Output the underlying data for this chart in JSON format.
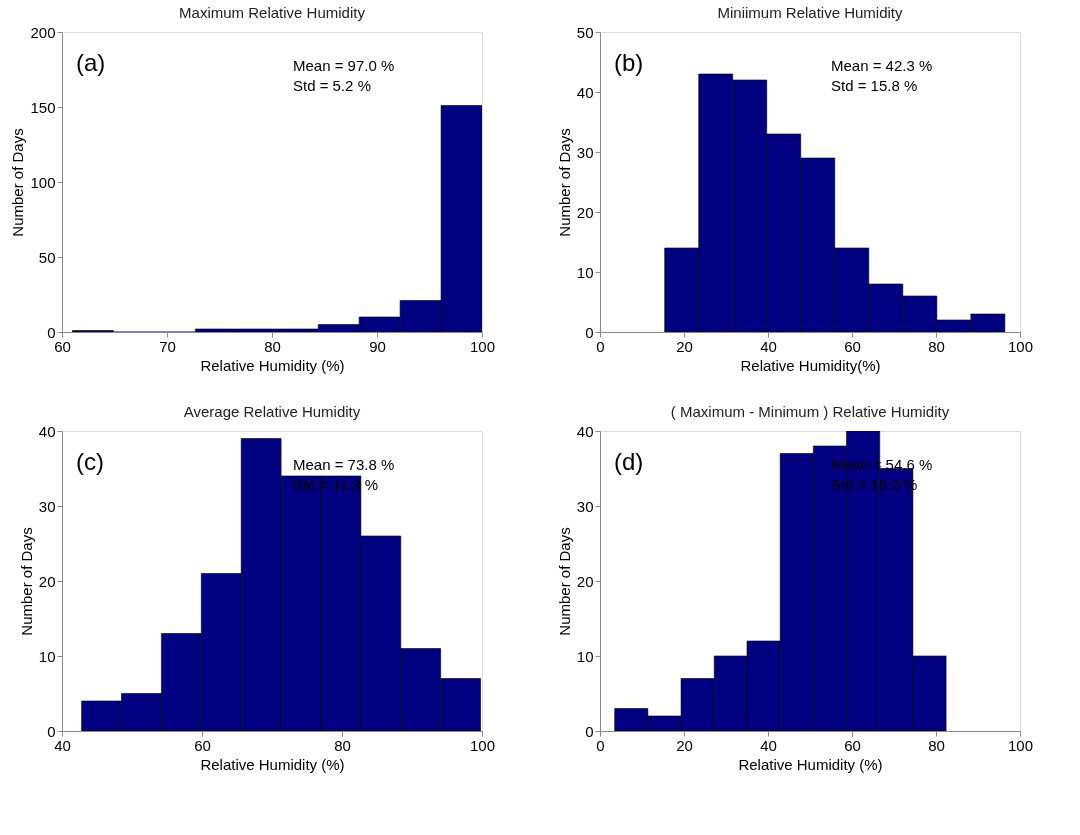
{
  "chart_data": [
    {
      "type": "histogram",
      "title": "Maximum Relative Humidity",
      "xlabel": "Relative Humidity (%)",
      "ylabel": "Number of Days",
      "color": "#000080",
      "bins": [
        61.0,
        64.9,
        68.8,
        72.7,
        76.6,
        80.5,
        84.4,
        88.3,
        92.2,
        96.1,
        100.0
      ],
      "values": [
        1,
        0,
        0,
        2,
        2,
        2,
        5,
        10,
        21,
        151
      ],
      "xlim": [
        60,
        100
      ],
      "xticks": [
        60,
        70,
        80,
        90,
        100
      ],
      "ylim": [
        0,
        200
      ],
      "yticks": [
        0,
        50,
        100,
        150,
        200
      ],
      "grid": false,
      "annotations": [
        "(a)",
        "Mean = 97.0 %",
        "Std    = 5.2 %"
      ]
    },
    {
      "type": "histogram",
      "title": "Miniimum Relative Humidity",
      "xlabel": "Relative Humidity(%)",
      "ylabel": "Number of Days",
      "color": "#000080",
      "bins": [
        15.4,
        23.5,
        31.6,
        39.7,
        47.8,
        55.9,
        64.0,
        72.1,
        80.2,
        88.3,
        96.4
      ],
      "values": [
        14,
        43,
        42,
        33,
        29,
        14,
        8,
        6,
        2,
        3
      ],
      "xlim": [
        0,
        100
      ],
      "xticks": [
        0,
        20,
        40,
        60,
        80,
        100
      ],
      "ylim": [
        0,
        50
      ],
      "yticks": [
        0,
        10,
        20,
        30,
        40,
        50
      ],
      "grid": false,
      "annotations": [
        "(b)",
        "Mean = 42.3 %",
        "Std    = 15.8 %"
      ]
    },
    {
      "type": "histogram",
      "title": "Average Relative Humidity",
      "xlabel": "Relative Humidity (%)",
      "ylabel": "Number of Days",
      "color": "#000080",
      "bins": [
        42.8,
        48.5,
        54.2,
        59.9,
        65.6,
        71.3,
        77.0,
        82.7,
        88.4,
        94.1,
        99.8
      ],
      "values": [
        4,
        5,
        13,
        21,
        39,
        34,
        34,
        26,
        11,
        7
      ],
      "xlim": [
        40,
        100
      ],
      "xticks": [
        40,
        60,
        80,
        100
      ],
      "ylim": [
        0,
        40
      ],
      "yticks": [
        0,
        10,
        20,
        30,
        40
      ],
      "grid": false,
      "annotations": [
        "(c)",
        "Mean = 73.8 %",
        "Std    = 11.3 %"
      ]
    },
    {
      "type": "histogram",
      "title": "( Maximum - Minimum ) Relative Humidity",
      "xlabel": "Relative Humidity (%)",
      "ylabel": "Number of Days",
      "color": "#000080",
      "bins": [
        3.5,
        11.4,
        19.3,
        27.2,
        35.0,
        42.9,
        50.8,
        58.7,
        66.6,
        74.5,
        82.4
      ],
      "values": [
        3,
        2,
        7,
        10,
        12,
        37,
        38,
        40,
        35,
        10
      ],
      "xlim": [
        0,
        100
      ],
      "xticks": [
        0,
        20,
        40,
        60,
        80,
        100
      ],
      "ylim": [
        0,
        40
      ],
      "yticks": [
        0,
        10,
        20,
        30,
        40
      ],
      "grid": false,
      "annotations": [
        "(d)",
        "Mean = 54.6 %",
        "Std    = 15.0 %"
      ]
    }
  ]
}
